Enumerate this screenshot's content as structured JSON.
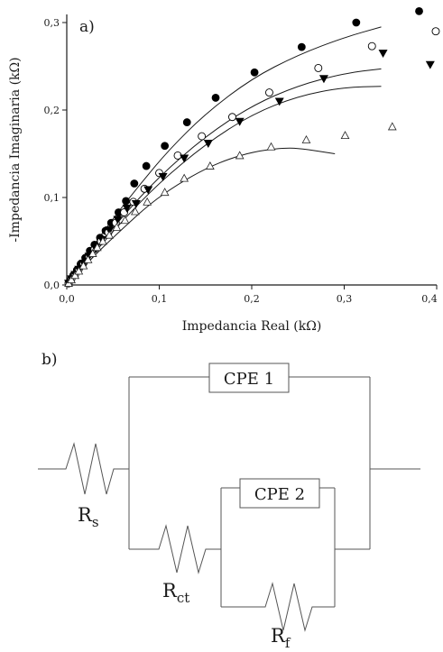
{
  "panel_a_label": "a)",
  "panel_b_label": "b)",
  "chart_data": {
    "type": "scatter",
    "title": "",
    "xlabel": "Impedancia Real (kΩ)",
    "ylabel": "-Impedancia Imaginaria (kΩ)",
    "xlim": [
      0.0,
      0.4
    ],
    "ylim": [
      0.0,
      0.3
    ],
    "xticks": [
      "0,0",
      "0,1",
      "0,2",
      "0,3",
      "0,4"
    ],
    "yticks": [
      "0,0",
      "0,1",
      "0,2",
      "0,3"
    ],
    "grid": false,
    "series": [
      {
        "marker": "filled-circle",
        "points": [
          [
            0.002,
            0.002
          ],
          [
            0.004,
            0.006
          ],
          [
            0.007,
            0.011
          ],
          [
            0.011,
            0.017
          ],
          [
            0.015,
            0.024
          ],
          [
            0.02,
            0.031
          ],
          [
            0.025,
            0.039
          ],
          [
            0.03,
            0.046
          ],
          [
            0.036,
            0.054
          ],
          [
            0.042,
            0.062
          ],
          [
            0.048,
            0.071
          ],
          [
            0.056,
            0.083
          ],
          [
            0.064,
            0.096
          ],
          [
            0.073,
            0.116
          ],
          [
            0.086,
            0.136
          ],
          [
            0.106,
            0.159
          ],
          [
            0.13,
            0.186
          ],
          [
            0.161,
            0.214
          ],
          [
            0.203,
            0.243
          ],
          [
            0.254,
            0.272
          ],
          [
            0.313,
            0.3
          ],
          [
            0.381,
            0.313
          ]
        ],
        "fit": [
          [
            0.0,
            0.0
          ],
          [
            0.025,
            0.039
          ],
          [
            0.05,
            0.076
          ],
          [
            0.08,
            0.116
          ],
          [
            0.11,
            0.154
          ],
          [
            0.15,
            0.196
          ],
          [
            0.2,
            0.236
          ],
          [
            0.25,
            0.263
          ],
          [
            0.3,
            0.283
          ],
          [
            0.34,
            0.295
          ]
        ]
      },
      {
        "marker": "open-circle",
        "points": [
          [
            0.002,
            0.002
          ],
          [
            0.005,
            0.007
          ],
          [
            0.009,
            0.012
          ],
          [
            0.013,
            0.018
          ],
          [
            0.018,
            0.025
          ],
          [
            0.024,
            0.033
          ],
          [
            0.03,
            0.041
          ],
          [
            0.037,
            0.05
          ],
          [
            0.045,
            0.06
          ],
          [
            0.053,
            0.071
          ],
          [
            0.062,
            0.083
          ],
          [
            0.072,
            0.095
          ],
          [
            0.084,
            0.11
          ],
          [
            0.1,
            0.128
          ],
          [
            0.12,
            0.148
          ],
          [
            0.146,
            0.17
          ],
          [
            0.179,
            0.192
          ],
          [
            0.219,
            0.22
          ],
          [
            0.272,
            0.248
          ],
          [
            0.33,
            0.273
          ],
          [
            0.399,
            0.29
          ]
        ],
        "fit": [
          [
            0.0,
            0.0
          ],
          [
            0.03,
            0.039
          ],
          [
            0.06,
            0.078
          ],
          [
            0.1,
            0.124
          ],
          [
            0.15,
            0.17
          ],
          [
            0.2,
            0.205
          ],
          [
            0.25,
            0.228
          ],
          [
            0.3,
            0.242
          ],
          [
            0.34,
            0.247
          ]
        ]
      },
      {
        "marker": "filled-triangle-down",
        "points": [
          [
            0.002,
            0.002
          ],
          [
            0.005,
            0.007
          ],
          [
            0.009,
            0.012
          ],
          [
            0.013,
            0.018
          ],
          [
            0.018,
            0.025
          ],
          [
            0.024,
            0.033
          ],
          [
            0.031,
            0.042
          ],
          [
            0.038,
            0.052
          ],
          [
            0.046,
            0.063
          ],
          [
            0.055,
            0.075
          ],
          [
            0.065,
            0.088
          ],
          [
            0.075,
            0.093
          ],
          [
            0.088,
            0.109
          ],
          [
            0.104,
            0.124
          ],
          [
            0.127,
            0.145
          ],
          [
            0.153,
            0.162
          ],
          [
            0.187,
            0.187
          ],
          [
            0.23,
            0.21
          ],
          [
            0.278,
            0.236
          ],
          [
            0.342,
            0.265
          ],
          [
            0.393,
            0.252
          ]
        ],
        "fit": [
          [
            0.0,
            0.0
          ],
          [
            0.03,
            0.037
          ],
          [
            0.06,
            0.073
          ],
          [
            0.1,
            0.117
          ],
          [
            0.15,
            0.161
          ],
          [
            0.2,
            0.195
          ],
          [
            0.25,
            0.216
          ],
          [
            0.3,
            0.226
          ],
          [
            0.34,
            0.227
          ]
        ]
      },
      {
        "marker": "open-triangle-up",
        "points": [
          [
            0.002,
            0.002
          ],
          [
            0.005,
            0.006
          ],
          [
            0.009,
            0.011
          ],
          [
            0.013,
            0.016
          ],
          [
            0.018,
            0.022
          ],
          [
            0.023,
            0.029
          ],
          [
            0.028,
            0.036
          ],
          [
            0.033,
            0.043
          ],
          [
            0.039,
            0.05
          ],
          [
            0.046,
            0.057
          ],
          [
            0.054,
            0.066
          ],
          [
            0.063,
            0.074
          ],
          [
            0.074,
            0.084
          ],
          [
            0.087,
            0.095
          ],
          [
            0.106,
            0.106
          ],
          [
            0.127,
            0.122
          ],
          [
            0.155,
            0.136
          ],
          [
            0.187,
            0.148
          ],
          [
            0.221,
            0.158
          ],
          [
            0.259,
            0.166
          ],
          [
            0.301,
            0.171
          ],
          [
            0.352,
            0.181
          ]
        ],
        "fit": [
          [
            0.0,
            0.0
          ],
          [
            0.03,
            0.034
          ],
          [
            0.06,
            0.064
          ],
          [
            0.09,
            0.093
          ],
          [
            0.12,
            0.115
          ],
          [
            0.15,
            0.133
          ],
          [
            0.18,
            0.146
          ],
          [
            0.21,
            0.154
          ],
          [
            0.24,
            0.157
          ],
          [
            0.26,
            0.155
          ],
          [
            0.29,
            0.15
          ]
        ]
      }
    ]
  },
  "circuit": {
    "cpe1_label": "CPE 1",
    "cpe2_label": "CPE 2",
    "rs_main": "R",
    "rs_sub": "s",
    "rct_main": "R",
    "rct_sub": "ct",
    "rf_main": "R",
    "rf_sub": "f"
  }
}
